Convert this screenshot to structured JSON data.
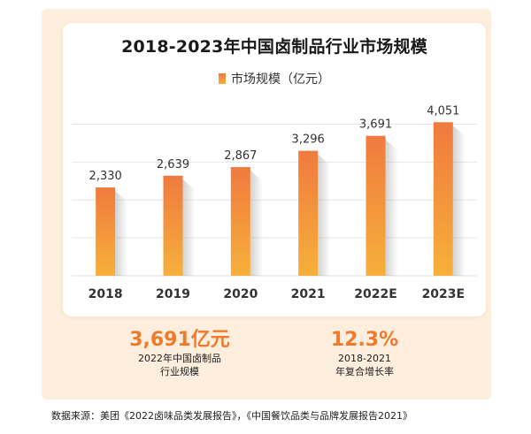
{
  "chart_data": {
    "type": "bar",
    "title": "2018-2023年中国卤制品行业市场规模",
    "series": [
      {
        "name": "市场规模（亿元）",
        "values": [
          2330,
          2639,
          2867,
          3296,
          3691,
          4051
        ]
      }
    ],
    "categories": [
      "2018",
      "2019",
      "2020",
      "2021",
      "2022E",
      "2023E"
    ],
    "value_labels": [
      "2,330",
      "2,639",
      "2,867",
      "3,296",
      "3,691",
      "4,051"
    ],
    "ylim": [
      0,
      4500
    ],
    "grid": true,
    "legend_position": "top-center",
    "bar_gradient": {
      "top": "#f07a3e",
      "bottom": "#f6b03b"
    }
  },
  "kpis": [
    {
      "value": "3,691亿元",
      "line1": "2022年中国卤制品",
      "line2": "行业规模"
    },
    {
      "value": "12.3%",
      "line1": "2018-2021",
      "line2": "年复合增长率"
    }
  ],
  "source": "数据来源：美团《2022卤味品类发展报告》，《中国餐饮品类与品牌发展报告2021》",
  "colors": {
    "accent": "#f07a2c",
    "panel_bg": "#fdeedd",
    "grid": "#e6e6e6"
  }
}
